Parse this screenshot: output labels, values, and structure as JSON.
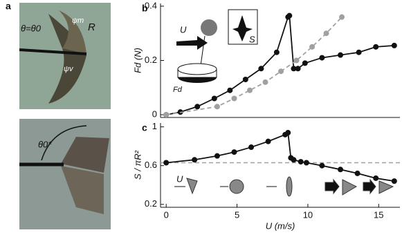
{
  "photo_panel": {
    "label": "a",
    "top_annotations": [
      "θ=θ0",
      "ψm",
      "R",
      "ψv"
    ],
    "bottom_annotations": [
      "θ0*"
    ]
  },
  "chart_data": [
    {
      "type": "line",
      "panel": "b",
      "y_label": "Fd (N)",
      "inset_labels": [
        "U",
        "S",
        "Fd"
      ],
      "xlim": [
        -0.4,
        16.5
      ],
      "ylim": [
        -0.01,
        0.41
      ],
      "yticks": [
        0,
        0.2,
        0.4
      ],
      "series": [
        {
          "color": "#111111",
          "dashed": false,
          "x": [
            0,
            1,
            2.2,
            3.4,
            4.5,
            5.6,
            6.7,
            7.8,
            8.6,
            8.7,
            9.0,
            9.3,
            9.8,
            11,
            12.3,
            13.6,
            14.8,
            16.1
          ],
          "values": [
            0,
            0.01,
            0.03,
            0.06,
            0.09,
            0.13,
            0.17,
            0.23,
            0.36,
            0.365,
            0.17,
            0.17,
            0.19,
            0.21,
            0.22,
            0.23,
            0.25,
            0.255
          ]
        },
        {
          "color": "#a0a0a0",
          "dashed": true,
          "x": [
            0,
            3.6,
            4.8,
            5.9,
            7,
            8.1,
            9.2,
            10.3,
            11.3,
            12.4
          ],
          "values": [
            0,
            0.03,
            0.06,
            0.09,
            0.12,
            0.16,
            0.2,
            0.25,
            0.3,
            0.36
          ]
        }
      ]
    },
    {
      "type": "line",
      "panel": "c",
      "x_label": "U (m/s)",
      "y_label": "S / πR²",
      "inset_labels": [
        "U"
      ],
      "xlim": [
        -0.4,
        16.5
      ],
      "ylim": [
        0.17,
        1.04
      ],
      "xticks": [
        0,
        5,
        10,
        15
      ],
      "yticks": [
        {
          "value": 0.2,
          "label": "0.2"
        },
        {
          "value": 0.6,
          "label": "0.6"
        },
        1
      ],
      "ref_line": {
        "value": 0.63,
        "color": "#a0a0a0"
      },
      "series": [
        {
          "color": "#111111",
          "dashed": false,
          "x": [
            0,
            2,
            3.6,
            4.8,
            6,
            7.2,
            8.4,
            8.6,
            8.8,
            9,
            9.5,
            9.9,
            11,
            12.3,
            13.5,
            14.8,
            16.1
          ],
          "values": [
            0.63,
            0.66,
            0.7,
            0.74,
            0.79,
            0.85,
            0.92,
            0.94,
            0.68,
            0.66,
            0.64,
            0.63,
            0.6,
            0.56,
            0.52,
            0.47,
            0.44
          ]
        }
      ]
    }
  ]
}
